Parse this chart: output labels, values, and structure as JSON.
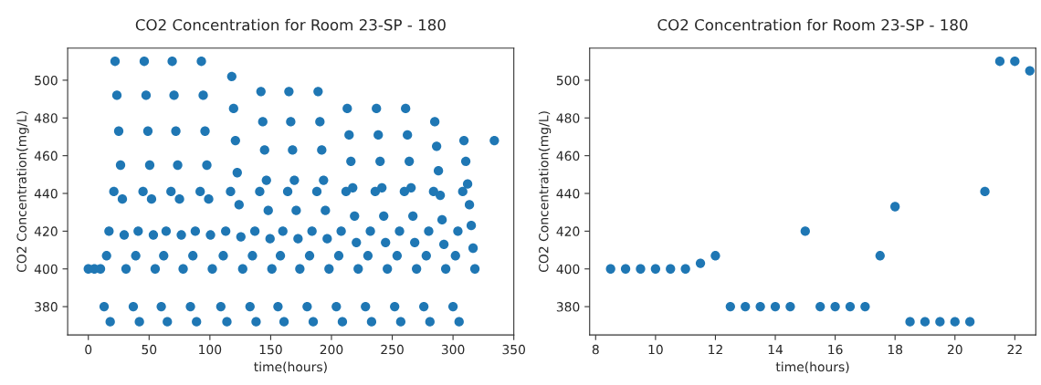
{
  "chart_data": [
    {
      "type": "scatter",
      "title": "CO2 Concentration for Room 23-SP - 180",
      "xlabel": "time(hours)",
      "ylabel": "CO2 Concentration(mg/L)",
      "marker": "circle",
      "xlim": [
        -17,
        350
      ],
      "ylim": [
        365,
        517
      ],
      "xticks": [
        0,
        50,
        100,
        150,
        200,
        250,
        300,
        350
      ],
      "yticks": [
        380,
        400,
        420,
        440,
        460,
        480,
        500
      ],
      "series": [
        {
          "color": "#1f77b4",
          "x": [
            0,
            5,
            10,
            13,
            15,
            17,
            18,
            21,
            22,
            23.5,
            25,
            26.5,
            28,
            29.5,
            31,
            37,
            39,
            41,
            42,
            45,
            46,
            47.5,
            49,
            50.5,
            52,
            53.5,
            55,
            60,
            62,
            64,
            65,
            68,
            69,
            70.5,
            72,
            73.5,
            75,
            76.5,
            78,
            84,
            86,
            88,
            89,
            92,
            93,
            94.5,
            96,
            97.5,
            99,
            100.5,
            102,
            109,
            111,
            113,
            114,
            117,
            118,
            119.5,
            121,
            122.5,
            124,
            125.5,
            127,
            133,
            135,
            137,
            138,
            141,
            142,
            143.5,
            145,
            146.5,
            148,
            149.5,
            151,
            156,
            158,
            160,
            161,
            164,
            165,
            166.5,
            168,
            169.5,
            171,
            172.5,
            174,
            180,
            182,
            184,
            185,
            188,
            189,
            190.5,
            192,
            193.5,
            195,
            196.5,
            198,
            204,
            206,
            208,
            209,
            212,
            213,
            214.5,
            216,
            217.5,
            219,
            220.5,
            222,
            228,
            230,
            232,
            233,
            236,
            237,
            238.5,
            240,
            241.5,
            243,
            244.5,
            246,
            252,
            254,
            256,
            257,
            260,
            261,
            262.5,
            264,
            265.5,
            267,
            268.5,
            270,
            276,
            278,
            280,
            281,
            284,
            285,
            286.5,
            288,
            289.5,
            291,
            292.5,
            294,
            300,
            302,
            304,
            305,
            308,
            309,
            310.5,
            312,
            313.5,
            315,
            316.5,
            318,
            334
          ],
          "values": [
            400,
            400,
            400,
            380,
            407,
            420,
            372,
            441,
            510,
            492,
            473,
            455,
            437,
            418,
            400,
            380,
            407,
            420,
            372,
            441,
            510,
            492,
            473,
            455,
            437,
            418,
            400,
            380,
            407,
            420,
            372,
            441,
            510,
            492,
            473,
            455,
            437,
            418,
            400,
            380,
            407,
            420,
            372,
            441,
            510,
            492,
            473,
            455,
            437,
            418,
            400,
            380,
            407,
            420,
            372,
            441,
            502,
            485,
            468,
            451,
            434,
            417,
            400,
            380,
            407,
            420,
            372,
            441,
            494,
            478,
            463,
            447,
            431,
            416,
            400,
            380,
            407,
            420,
            372,
            441,
            494,
            478,
            463,
            447,
            431,
            416,
            400,
            380,
            407,
            420,
            372,
            441,
            494,
            478,
            463,
            447,
            431,
            416,
            400,
            380,
            407,
            420,
            372,
            441,
            485,
            471,
            457,
            443,
            428,
            414,
            400,
            380,
            407,
            420,
            372,
            441,
            485,
            471,
            457,
            443,
            428,
            414,
            400,
            380,
            407,
            420,
            372,
            441,
            485,
            471,
            457,
            443,
            428,
            414,
            400,
            380,
            407,
            420,
            372,
            441,
            478,
            465,
            452,
            439,
            426,
            413,
            400,
            380,
            407,
            420,
            372,
            441,
            468,
            457,
            445,
            434,
            423,
            411,
            400,
            468
          ]
        }
      ]
    },
    {
      "type": "scatter",
      "title": "CO2 Concentration for Room 23-SP - 180",
      "xlabel": "time(hours)",
      "ylabel": "CO2 Concentration(mg/L)",
      "marker": "circle",
      "xlim": [
        7.8,
        22.7
      ],
      "ylim": [
        365,
        517
      ],
      "xticks": [
        8,
        10,
        12,
        14,
        16,
        18,
        20,
        22
      ],
      "yticks": [
        380,
        400,
        420,
        440,
        460,
        480,
        500
      ],
      "series": [
        {
          "color": "#1f77b4",
          "x": [
            8.5,
            9,
            9.5,
            10,
            10.5,
            11,
            11.5,
            12,
            12.5,
            13,
            13.5,
            14,
            14.5,
            15,
            15.5,
            16,
            16.5,
            17,
            17.5,
            18,
            18.5,
            19,
            19.5,
            20,
            20.5,
            21,
            21.5,
            22,
            22.5
          ],
          "values": [
            400,
            400,
            400,
            400,
            400,
            400,
            403,
            407,
            380,
            380,
            380,
            380,
            380,
            420,
            380,
            380,
            380,
            380,
            407,
            433,
            372,
            372,
            372,
            372,
            372,
            441,
            510,
            510,
            505
          ]
        }
      ]
    }
  ]
}
